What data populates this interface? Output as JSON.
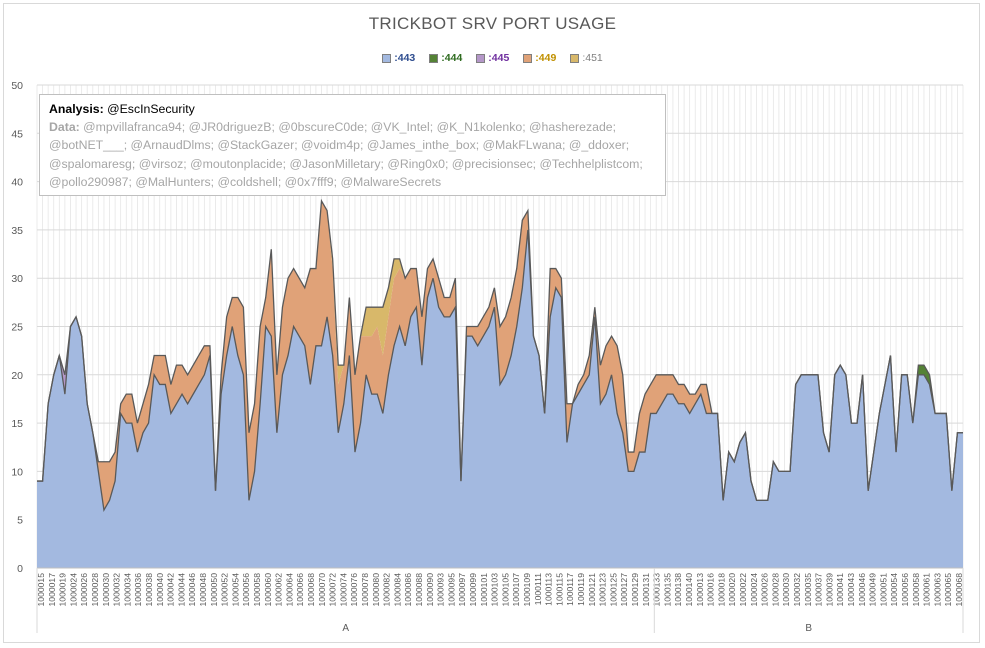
{
  "chart_data": {
    "type": "area",
    "stacked": true,
    "title": "TRICKBOT SRV PORT USAGE",
    "xlabel": "",
    "ylabel": "",
    "ylim": [
      0,
      50
    ],
    "yticks": [
      0,
      5,
      10,
      15,
      20,
      25,
      30,
      35,
      40,
      45,
      50
    ],
    "grid": true,
    "legend_position": "top",
    "groups": [
      {
        "label": "A",
        "count": 110
      },
      {
        "label": "B",
        "count": 55
      }
    ],
    "x_tick_labels": [
      "1000015",
      "1000017",
      "1000019",
      "1000024",
      "1000026",
      "1000028",
      "1000030",
      "1000032",
      "1000034",
      "1000036",
      "1000038",
      "1000040",
      "1000042",
      "1000044",
      "1000046",
      "1000048",
      "1000050",
      "1000052",
      "1000054",
      "1000056",
      "1000058",
      "1000060",
      "1000062",
      "1000064",
      "1000066",
      "1000068",
      "1000070",
      "1000072",
      "1000074",
      "1000076",
      "1000078",
      "1000080",
      "1000082",
      "1000084",
      "1000086",
      "1000088",
      "1000090",
      "1000093",
      "1000095",
      "1000097",
      "1000099",
      "1000101",
      "1000103",
      "1000105",
      "1000107",
      "1000109",
      "1000111",
      "1000113",
      "1000115",
      "1000117",
      "1000119",
      "1000121",
      "1000123",
      "1000125",
      "1000127",
      "1000129",
      "1000131",
      "1000133",
      "1000135",
      "1000138",
      "1000140",
      "1000013",
      "1000016",
      "1000018",
      "1000020",
      "1000022",
      "1000024",
      "1000026",
      "1000028",
      "1000030",
      "1000032",
      "1000035",
      "1000037",
      "1000039",
      "1000041",
      "1000043",
      "1000046",
      "1000049",
      "1000051",
      "1000054",
      "1000056",
      "1000058",
      "1000061",
      "1000063",
      "1000065",
      "1000068"
    ],
    "series": [
      {
        "name": ":443",
        "color": "#a3b9e0",
        "label_color": "#2e4d8f",
        "values": [
          9,
          9,
          17,
          20,
          22,
          18,
          25,
          26,
          24,
          17,
          14,
          10,
          6,
          7,
          9,
          16,
          15,
          15,
          12,
          14,
          15,
          20,
          19,
          19,
          16,
          17,
          18,
          17,
          18,
          19,
          20,
          22,
          8,
          18,
          22,
          25,
          22,
          20,
          7,
          10,
          17,
          25,
          24,
          14,
          20,
          22,
          25,
          24,
          23,
          19,
          23,
          23,
          26,
          22,
          14,
          17,
          22,
          12,
          15,
          20,
          18,
          18,
          16,
          20,
          23,
          25,
          23,
          26,
          27,
          21,
          28,
          30,
          27,
          26,
          26,
          27,
          9,
          24,
          24,
          23,
          24,
          25,
          27,
          19,
          20,
          22,
          25,
          29,
          35,
          24,
          22,
          16,
          26,
          29,
          28,
          13,
          17,
          18,
          19,
          20,
          26,
          17,
          18,
          20,
          16,
          14,
          10,
          10,
          12,
          12,
          16,
          16,
          17,
          18,
          18,
          17,
          17,
          16,
          17,
          18,
          16,
          16,
          16,
          7,
          12,
          11,
          13,
          14,
          9,
          7,
          7,
          7,
          11,
          10,
          10,
          10,
          19,
          20,
          20,
          20,
          20,
          14,
          12,
          20,
          21,
          20,
          15,
          15,
          20,
          8,
          12,
          16,
          19,
          22,
          12,
          20,
          20,
          15,
          20,
          20,
          19,
          16,
          16,
          16,
          8,
          14,
          14
        ]
      },
      {
        "name": ":444",
        "color": "#548235",
        "label_color": "#2e6b1f",
        "values": [
          0,
          0,
          0,
          0,
          0,
          0,
          0,
          0,
          0,
          0,
          0,
          0,
          0,
          0,
          0,
          0,
          0,
          0,
          0,
          0,
          0,
          0,
          0,
          0,
          0,
          0,
          0,
          0,
          0,
          0,
          0,
          0,
          0,
          0,
          0,
          0,
          0,
          0,
          0,
          0,
          0,
          0,
          0,
          0,
          0,
          0,
          0,
          0,
          0,
          0,
          0,
          0,
          0,
          0,
          0,
          0,
          0,
          0,
          0,
          0,
          0,
          0,
          0,
          0,
          0,
          0,
          0,
          0,
          0,
          0,
          0,
          0,
          0,
          0,
          0,
          0,
          0,
          0,
          0,
          0,
          0,
          0,
          0,
          0,
          0,
          0,
          0,
          0,
          0,
          0,
          0,
          0,
          0,
          0,
          0,
          0,
          0,
          0,
          0,
          0,
          0,
          0,
          0,
          0,
          0,
          0,
          0,
          0,
          0,
          0,
          0,
          0,
          0,
          0,
          0,
          0,
          0,
          0,
          0,
          0,
          0,
          0,
          0,
          0,
          0,
          0,
          0,
          0,
          0,
          0,
          0,
          0,
          0,
          0,
          0,
          0,
          0,
          0,
          0,
          0,
          0,
          0,
          0,
          0,
          0,
          0,
          0,
          0,
          0,
          0,
          0,
          0,
          0,
          0,
          0,
          0,
          0,
          0,
          1,
          1,
          1,
          0,
          0,
          0,
          0,
          0,
          0
        ]
      },
      {
        "name": ":445",
        "color": "#b497c8",
        "label_color": "#7030a0",
        "values": [
          0,
          0,
          0,
          0,
          0,
          2,
          0,
          0,
          0,
          0,
          0,
          0,
          0,
          0,
          0,
          0,
          0,
          0,
          0,
          0,
          0,
          0,
          0,
          0,
          0,
          0,
          0,
          0,
          0,
          0,
          0,
          0,
          0,
          0,
          0,
          0,
          0,
          0,
          0,
          0,
          0,
          0,
          0,
          0,
          0,
          0,
          0,
          0,
          0,
          0,
          0,
          0,
          0,
          0,
          0,
          0,
          0,
          0,
          0,
          0,
          0,
          0,
          0,
          0,
          0,
          0,
          0,
          0,
          0,
          0,
          0,
          0,
          0,
          0,
          0,
          0,
          0,
          0,
          0,
          0,
          0,
          0,
          0,
          0,
          0,
          0,
          0,
          0,
          0,
          0,
          0,
          0,
          0,
          0,
          0,
          0,
          0,
          0,
          0,
          0,
          0,
          0,
          0,
          0,
          0,
          0,
          0,
          0,
          0,
          0,
          0,
          0,
          0,
          0,
          0,
          0,
          0,
          0,
          0,
          0,
          0,
          0,
          0,
          0,
          0,
          0,
          0,
          0,
          0,
          0,
          0,
          0,
          0,
          0,
          0,
          0,
          0,
          0,
          0,
          0,
          0,
          0,
          0,
          0,
          0,
          0,
          0,
          0,
          0,
          0,
          0,
          0,
          0,
          0,
          0,
          0,
          0,
          0,
          0,
          0,
          0,
          0,
          0,
          0,
          0,
          0,
          0
        ]
      },
      {
        "name": ":449",
        "color": "#e0a278",
        "label_color": "#c09000",
        "values": [
          0,
          0,
          0,
          0,
          0,
          0,
          0,
          0,
          0,
          0,
          0,
          1,
          5,
          4,
          3,
          1,
          3,
          3,
          3,
          3,
          4,
          2,
          3,
          3,
          3,
          4,
          3,
          3,
          3,
          3,
          3,
          1,
          0,
          2,
          4,
          3,
          6,
          7,
          7,
          7,
          8,
          3,
          9,
          6,
          7,
          8,
          6,
          6,
          6,
          12,
          8,
          15,
          11,
          9,
          5,
          4,
          6,
          8,
          9,
          4,
          6,
          7,
          6,
          6,
          7,
          6,
          7,
          5,
          4,
          5,
          3,
          2,
          3,
          2,
          2,
          3,
          0,
          1,
          1,
          2,
          2,
          2,
          2,
          6,
          6,
          6,
          6,
          7,
          2,
          0,
          0,
          0,
          5,
          2,
          2,
          4,
          0,
          1,
          1,
          2,
          1,
          4,
          5,
          4,
          7,
          6,
          2,
          2,
          4,
          6,
          3,
          4,
          3,
          2,
          2,
          2,
          2,
          2,
          1,
          1,
          3,
          0,
          0,
          0,
          0,
          0,
          0,
          0,
          0,
          0,
          0,
          0,
          0,
          0,
          0,
          0,
          0,
          0,
          0,
          0,
          0,
          0,
          0,
          0,
          0,
          0,
          0,
          0,
          0,
          0,
          0,
          0,
          0,
          0,
          0,
          0,
          0,
          0,
          0,
          0,
          0,
          0,
          0,
          0,
          0,
          0,
          0
        ]
      },
      {
        "name": ":451",
        "color": "#d8b86a",
        "label_color": "#7f7f7f",
        "values": [
          0,
          0,
          0,
          0,
          0,
          0,
          0,
          0,
          0,
          0,
          0,
          0,
          0,
          0,
          0,
          0,
          0,
          0,
          0,
          0,
          0,
          0,
          0,
          0,
          0,
          0,
          0,
          0,
          0,
          0,
          0,
          0,
          0,
          0,
          0,
          0,
          0,
          0,
          0,
          0,
          0,
          0,
          0,
          0,
          0,
          0,
          0,
          0,
          0,
          0,
          0,
          0,
          0,
          1,
          2,
          0,
          0,
          0,
          0,
          3,
          3,
          2,
          5,
          3,
          2,
          1,
          0,
          0,
          0,
          0,
          0,
          0,
          0,
          0,
          0,
          0,
          0,
          0,
          0,
          0,
          0,
          0,
          0,
          0,
          0,
          0,
          0,
          0,
          0,
          0,
          0,
          0,
          0,
          0,
          0,
          0,
          0,
          0,
          0,
          0,
          0,
          0,
          0,
          0,
          0,
          0,
          0,
          0,
          0,
          0,
          0,
          0,
          0,
          0,
          0,
          0,
          0,
          0,
          0,
          0,
          0,
          0,
          0,
          0,
          0,
          0,
          0,
          0,
          0,
          0,
          0,
          0,
          0,
          0,
          0,
          0,
          0,
          0,
          0,
          0,
          0,
          0,
          0,
          0,
          0,
          0,
          0,
          0,
          0,
          0,
          0,
          0,
          0,
          0,
          0,
          0,
          0,
          0,
          0,
          0,
          0,
          0,
          0,
          0,
          0,
          0,
          0,
          0
        ]
      }
    ],
    "annotation": {
      "analysis_label": "Analysis:",
      "analysis_value": "@EscInSecurity",
      "data_label": "Data:",
      "data_value": "@mpvillafranca94; @JR0driguezB; @0bscureC0de; @VK_Intel; @K_N1kolenko; @hasherezade; @botNET___; @ArnaudDlms; @StackGazer; @voidm4p; @James_inthe_box; @MakFLwana; @_ddoxer; @spalomaresg; @virsoz; @moutonplacide; @JasonMilletary; @Ring0x0; @precisionsec; @Techhelplistcom; @pollo290987; @MalHunters; @coldshell; @0x7fff9; @MalwareSecrets"
    }
  }
}
